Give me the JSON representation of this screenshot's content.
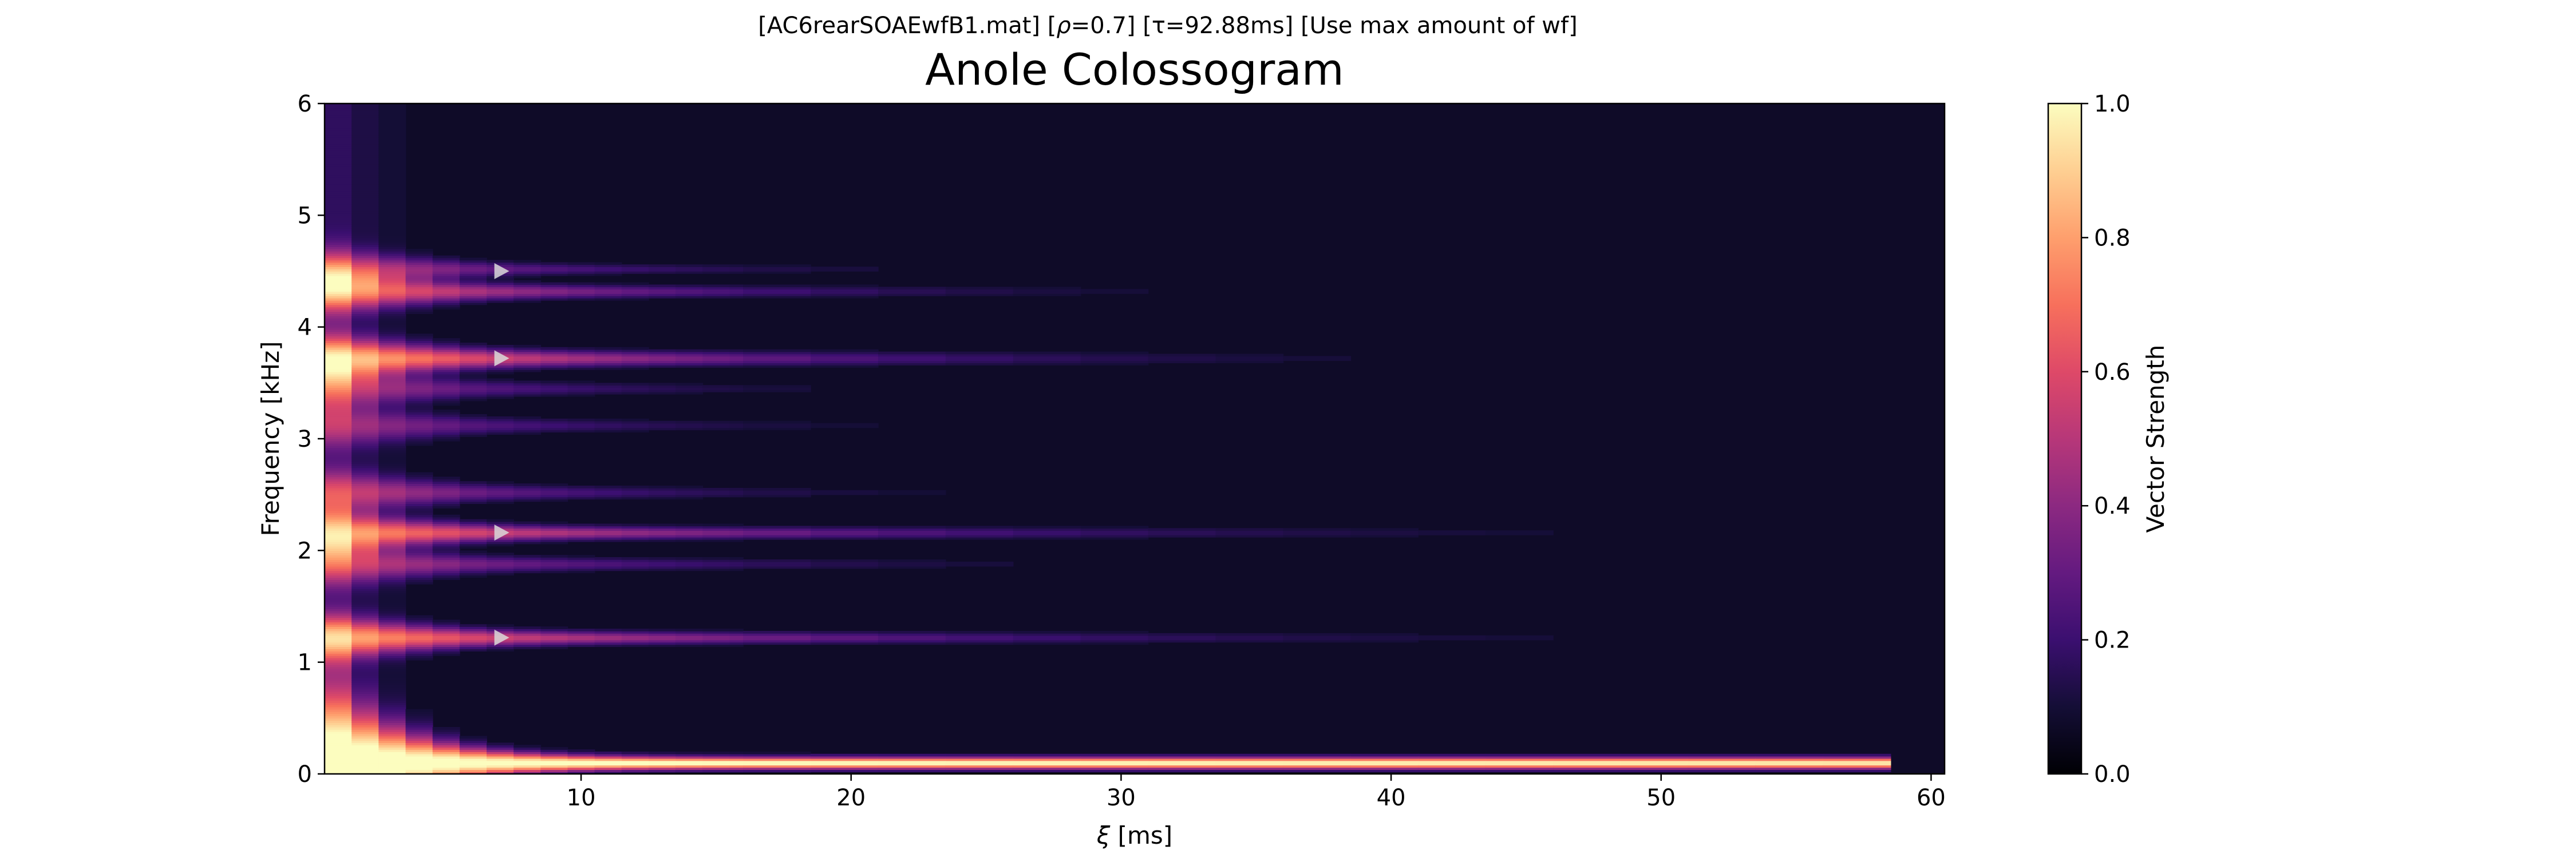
{
  "chart_data": {
    "type": "heatmap",
    "suptitle": {
      "file": "[AC6rearSOAEwfB1.mat]",
      "rho_symbol": "ρ",
      "rho_value": "=0.7]",
      "tau_symbol": "τ",
      "tau_value": "=92.88ms]",
      "note": "[Use max amount of wf]"
    },
    "title": "Anole Colossogram",
    "xlabel_symbol": "ξ",
    "xlabel_unit": " [ms]",
    "ylabel": "Frequency [kHz]",
    "colorbar_label": "Vector Strength",
    "colormap": "magma",
    "xlim": [
      0.5,
      60.5
    ],
    "ylim": [
      0,
      6
    ],
    "clim": [
      0,
      1
    ],
    "x_ticks": [
      10,
      20,
      30,
      40,
      50,
      60
    ],
    "y_ticks": [
      0,
      1,
      2,
      3,
      4,
      5,
      6
    ],
    "colorbar_ticks": [
      "0.0",
      "0.2",
      "0.4",
      "0.6",
      "0.8",
      "1.0"
    ],
    "bands": [
      {
        "freq_khz": 0.1,
        "peak": 0.98,
        "width_khz": 0.05,
        "decay_ms": 900
      },
      {
        "freq_khz": 1.22,
        "peak": 0.72,
        "width_khz": 0.05,
        "decay_ms": 16
      },
      {
        "freq_khz": 1.88,
        "peak": 0.45,
        "width_khz": 0.05,
        "decay_ms": 11
      },
      {
        "freq_khz": 2.16,
        "peak": 0.7,
        "width_khz": 0.05,
        "decay_ms": 16
      },
      {
        "freq_khz": 2.52,
        "peak": 0.45,
        "width_khz": 0.05,
        "decay_ms": 9
      },
      {
        "freq_khz": 3.12,
        "peak": 0.35,
        "width_khz": 0.05,
        "decay_ms": 9
      },
      {
        "freq_khz": 3.45,
        "peak": 0.4,
        "width_khz": 0.05,
        "decay_ms": 8
      },
      {
        "freq_khz": 3.72,
        "peak": 0.78,
        "width_khz": 0.06,
        "decay_ms": 13
      },
      {
        "freq_khz": 4.32,
        "peak": 0.65,
        "width_khz": 0.05,
        "decay_ms": 11
      },
      {
        "freq_khz": 4.52,
        "peak": 0.45,
        "width_khz": 0.04,
        "decay_ms": 9
      }
    ],
    "peak_markers": [
      {
        "xi_ms": 7,
        "freq_khz": 1.22
      },
      {
        "xi_ms": 7,
        "freq_khz": 2.16
      },
      {
        "xi_ms": 7,
        "freq_khz": 3.72
      },
      {
        "xi_ms": 7,
        "freq_khz": 4.5
      }
    ]
  }
}
